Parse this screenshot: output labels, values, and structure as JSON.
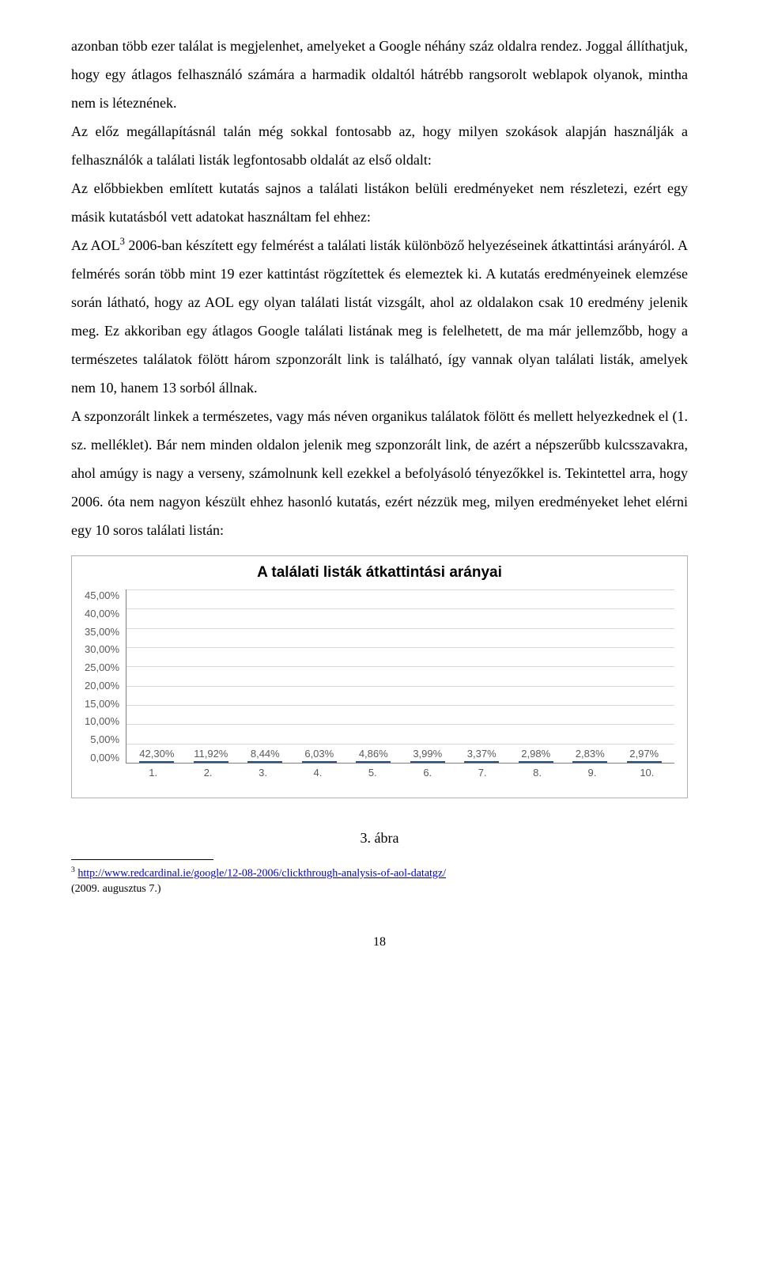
{
  "paragraphs": {
    "p1": "azonban több ezer találat is megjelenhet, amelyeket a Google néhány száz oldalra rendez. Joggal állíthatjuk, hogy egy átlagos felhasználó számára a harmadik oldaltól hátrébb rangsorolt weblapok olyanok, mintha nem is léteznének.",
    "p2": "Az előz megállapításnál talán még sokkal fontosabb az, hogy milyen szokások alapján használják a felhasználók a találati listák legfontosabb oldalát az első oldalt:",
    "p3": "Az előbbiekben említett kutatás sajnos a találati listákon belüli eredményeket nem részletezi, ezért egy másik kutatásból vett adatokat használtam fel ehhez:",
    "p4_prefix": "Az AOL",
    "p4_sup": "3",
    "p4_suffix": " 2006-ban készített egy felmérést a találati listák különböző helyezéseinek átkattintási arányáról. A felmérés során több mint 19 ezer kattintást rögzítettek és elemeztek ki. A kutatás eredményeinek elemzése során látható, hogy az AOL egy olyan találati listát vizsgált, ahol az oldalakon csak 10 eredmény jelenik meg. Ez akkoriban egy átlagos Google találati listának meg is felelhetett, de ma már jellemzőbb, hogy a természetes találatok fölött három szponzorált link is található, így vannak olyan találati listák, amelyek nem 10, hanem 13 sorból állnak.",
    "p5": "A szponzorált linkek a természetes, vagy más néven organikus találatok fölött és mellett helyezkednek el (1. sz. melléklet). Bár nem minden oldalon jelenik meg szponzorált link, de azért a népszerűbb kulcsszavakra, ahol amúgy is nagy a verseny, számolnunk kell ezekkel a befolyásoló tényezőkkel is. Tekintettel arra, hogy 2006. óta nem nagyon készült ehhez hasonló kutatás, ezért nézzük meg, milyen eredményeket lehet elérni egy 10 soros találati listán:"
  },
  "chart": {
    "title": "A találati listák átkattintási arányai",
    "type": "bar",
    "ylim_max": 45,
    "ytick_step": 5,
    "y_ticks": [
      "45,00%",
      "40,00%",
      "35,00%",
      "30,00%",
      "25,00%",
      "20,00%",
      "15,00%",
      "10,00%",
      "5,00%",
      "0,00%"
    ],
    "categories": [
      "1.",
      "2.",
      "3.",
      "4.",
      "5.",
      "6.",
      "7.",
      "8.",
      "9.",
      "10."
    ],
    "values": [
      42.3,
      11.92,
      8.44,
      6.03,
      4.86,
      3.99,
      3.37,
      2.98,
      2.83,
      2.97
    ],
    "value_labels": [
      "42,30%",
      "11,92%",
      "8,44%",
      "6,03%",
      "4,86%",
      "3,99%",
      "3,37%",
      "2,98%",
      "2,83%",
      "2,97%"
    ],
    "bar_color_top": "#6e9ed0",
    "bar_color_bottom": "#3a6aa8",
    "bar_border": "#2a4f80",
    "grid_color": "#d9d9d9",
    "axis_color": "#808080",
    "label_color": "#595959",
    "title_fontsize": 19,
    "label_fontsize": 13
  },
  "figure_caption": "3.  ábra",
  "footnote": {
    "marker": "3",
    "url_text": "http://www.redcardinal.ie/google/12-08-2006/clickthrough-analysis-of-aol-datatgz/",
    "date": "(2009. augusztus 7.)"
  },
  "page_number": "18"
}
